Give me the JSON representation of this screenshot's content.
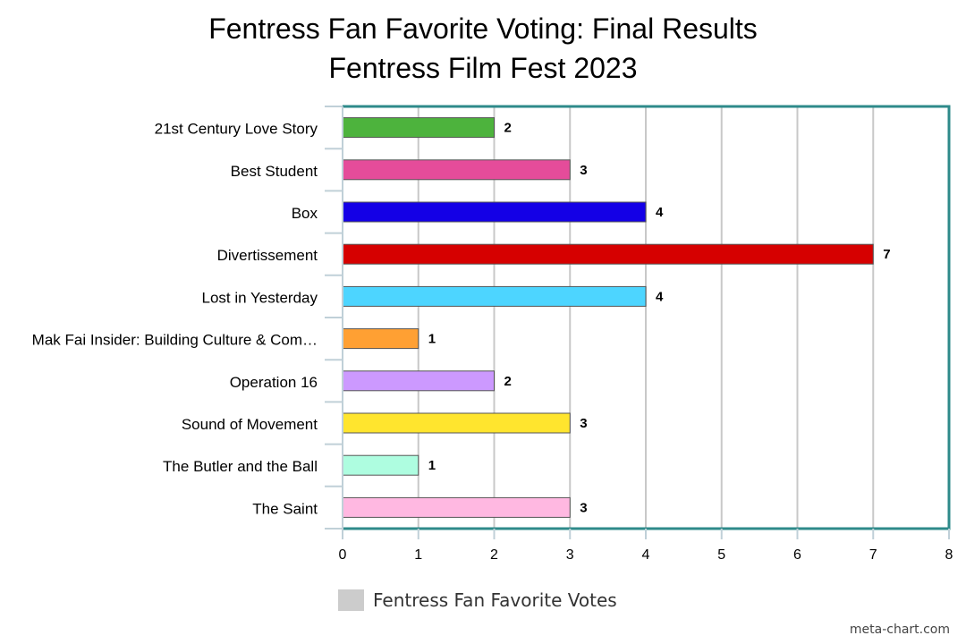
{
  "chart_data": {
    "type": "bar",
    "orientation": "horizontal",
    "title": "Fentress Fan Favorite Voting: Final Results",
    "subtitle": "Fentress Film Fest 2023",
    "categories": [
      "21st Century Love Story",
      "Best Student",
      "Box",
      "Divertissement",
      "Lost in Yesterday",
      "Mak Fai Insider: Building Culture & Com…",
      "Operation 16",
      "Sound of Movement",
      "The Butler and the Ball",
      "The Saint"
    ],
    "series": [
      {
        "name": "Fentress Fan Favorite Votes",
        "values": [
          2,
          3,
          4,
          7,
          4,
          1,
          2,
          3,
          1,
          3
        ]
      }
    ],
    "bar_colors": [
      "#4db33d",
      "#e54c9a",
      "#1400e6",
      "#d60000",
      "#4dd5ff",
      "#ffa033",
      "#cc99ff",
      "#ffe52e",
      "#aefde0",
      "#ffb8e1"
    ],
    "xlim": [
      0,
      8
    ],
    "xticks": [
      "0",
      "1",
      "2",
      "3",
      "4",
      "5",
      "6",
      "7",
      "8"
    ],
    "data_labels": true,
    "grid": true,
    "legend_position": "bottom-center",
    "frame_color": "#2e8a8a",
    "grid_color": "#c8c8c8"
  },
  "credit": "meta-chart.com"
}
